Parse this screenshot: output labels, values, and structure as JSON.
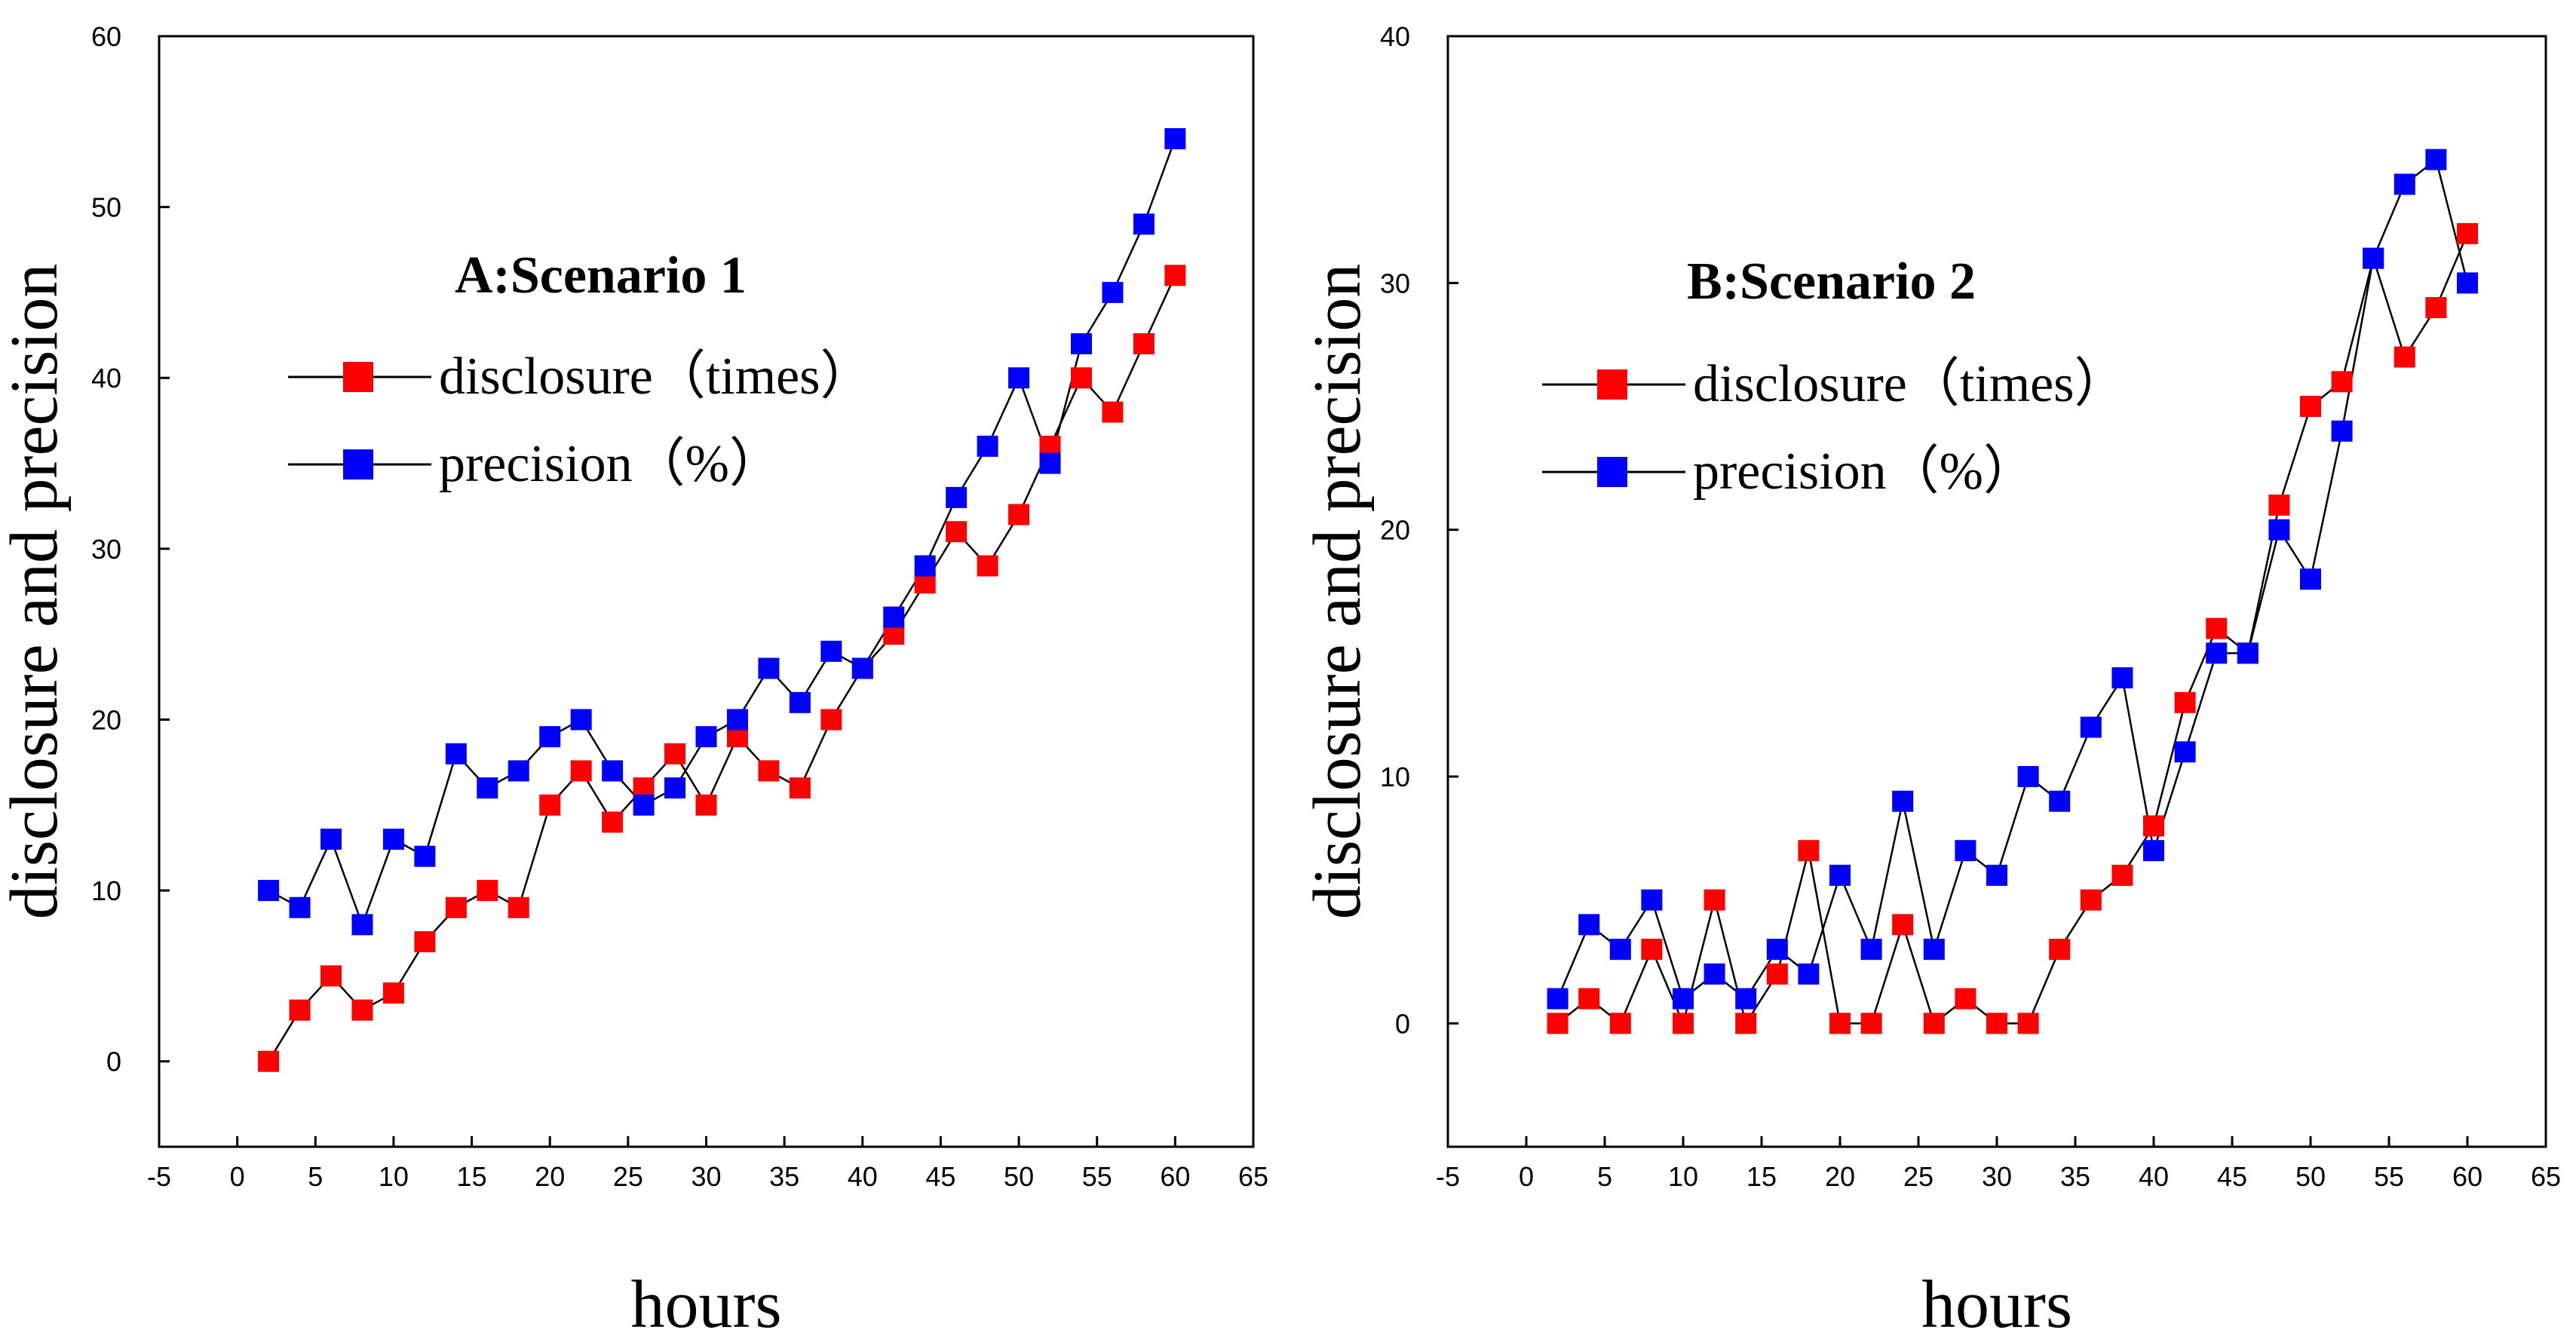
{
  "chart_data": [
    {
      "type": "line",
      "title": "A:Scenario 1",
      "xlabel": "hours",
      "ylabel": "disclosure and precision",
      "xlim": [
        -5,
        65
      ],
      "ylim": [
        -5,
        60
      ],
      "xticks": [
        -5,
        0,
        5,
        10,
        15,
        20,
        25,
        30,
        35,
        40,
        45,
        50,
        55,
        60,
        65
      ],
      "yticks": [
        0,
        10,
        20,
        30,
        40,
        50,
        60
      ],
      "x": [
        2,
        4,
        6,
        8,
        10,
        12,
        14,
        16,
        18,
        20,
        22,
        24,
        26,
        28,
        30,
        32,
        34,
        36,
        38,
        40,
        42,
        44,
        46,
        48,
        50,
        52,
        54,
        56,
        58,
        60
      ],
      "series": [
        {
          "name": "disclosure（times）",
          "color": "#ff0000",
          "values": [
            0,
            3,
            5,
            3,
            4,
            7,
            9,
            10,
            9,
            15,
            17,
            14,
            16,
            18,
            15,
            19,
            17,
            16,
            20,
            23,
            25,
            28,
            31,
            29,
            32,
            36,
            40,
            38,
            42,
            46
          ]
        },
        {
          "name": "precision（%）",
          "color": "#0000ff",
          "values": [
            10,
            9,
            13,
            8,
            13,
            12,
            18,
            16,
            17,
            19,
            20,
            17,
            15,
            16,
            19,
            20,
            23,
            21,
            24,
            23,
            26,
            29,
            33,
            36,
            40,
            35,
            42,
            45,
            49,
            54
          ]
        }
      ],
      "legend_position": "upper-left"
    },
    {
      "type": "line",
      "title": "B:Scenario 2",
      "xlabel": "hours",
      "ylabel": "disclosure and precision",
      "xlim": [
        -5,
        65
      ],
      "ylim": [
        -5,
        40
      ],
      "xticks": [
        -5,
        0,
        5,
        10,
        15,
        20,
        25,
        30,
        35,
        40,
        45,
        50,
        55,
        60,
        65
      ],
      "yticks": [
        0,
        10,
        20,
        30,
        40
      ],
      "x": [
        2,
        4,
        6,
        8,
        10,
        12,
        14,
        16,
        18,
        20,
        22,
        24,
        26,
        28,
        30,
        32,
        34,
        36,
        38,
        40,
        42,
        44,
        46,
        48,
        50,
        52,
        54,
        56,
        58,
        60
      ],
      "series": [
        {
          "name": "disclosure（times）",
          "color": "#ff0000",
          "values": [
            0,
            1,
            0,
            3,
            0,
            5,
            0,
            2,
            7,
            0,
            0,
            4,
            0,
            1,
            0,
            0,
            3,
            5,
            6,
            8,
            13,
            16,
            15,
            21,
            25,
            26,
            31,
            27,
            29,
            32
          ]
        },
        {
          "name": "precision（%）",
          "color": "#0000ff",
          "values": [
            1,
            4,
            3,
            5,
            1,
            2,
            1,
            3,
            2,
            6,
            3,
            9,
            3,
            7,
            6,
            10,
            9,
            12,
            14,
            7,
            11,
            15,
            15,
            20,
            18,
            24,
            31,
            34,
            35,
            30
          ]
        }
      ],
      "legend_position": "upper-left"
    }
  ]
}
